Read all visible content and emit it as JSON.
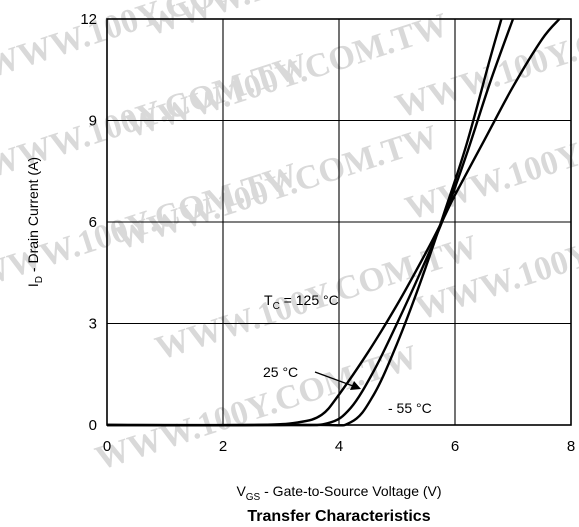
{
  "chart_data": {
    "type": "line",
    "title": "Transfer Characteristics",
    "xlabel": {
      "main": "V",
      "sub": "GS",
      "rest": " - Gate-to-Source Voltage (V)"
    },
    "ylabel": {
      "main": "I",
      "sub": "D",
      "rest": " - Drain Current (A)"
    },
    "xlim": [
      0,
      8
    ],
    "ylim": [
      0,
      12
    ],
    "xticks": [
      "0",
      "2",
      "4",
      "6",
      "8"
    ],
    "yticks": [
      "0",
      "3",
      "6",
      "9",
      "12"
    ],
    "grid": true,
    "series": [
      {
        "name": "TC = 125 °C",
        "x": [
          0,
          2.5,
          3.3,
          3.7,
          4.0,
          4.5,
          5.0,
          5.5,
          5.8,
          6.0,
          6.5,
          7.0,
          7.5,
          7.8
        ],
        "y": [
          0,
          0,
          0.08,
          0.3,
          0.9,
          2.15,
          3.55,
          5.1,
          6.1,
          6.8,
          8.4,
          10.0,
          11.4,
          12.0
        ]
      },
      {
        "name": "25 °C",
        "x": [
          0,
          3.0,
          3.8,
          4.2,
          4.6,
          5.0,
          5.4,
          5.8,
          6.2,
          6.6,
          7.0
        ],
        "y": [
          0,
          0,
          0.05,
          0.5,
          1.6,
          3.0,
          4.5,
          6.1,
          8.0,
          10.1,
          12.0
        ]
      },
      {
        "name": "- 55 °C",
        "x": [
          0,
          3.5,
          4.2,
          4.6,
          5.0,
          5.4,
          5.8,
          6.2,
          6.6,
          6.8
        ],
        "y": [
          0,
          0,
          0.08,
          0.9,
          2.4,
          4.2,
          6.2,
          8.3,
          10.8,
          12.0
        ]
      }
    ],
    "annotations": [
      {
        "parts": [
          {
            "t": "T"
          },
          {
            "t": "C",
            "sub": true
          },
          {
            "t": " = 125 °C"
          }
        ]
      },
      {
        "parts": [
          {
            "t": "25 °C"
          }
        ]
      },
      {
        "parts": [
          {
            "t": "- 55 °C"
          }
        ]
      }
    ],
    "watermark": "WWW.100Y.COM.TW"
  }
}
